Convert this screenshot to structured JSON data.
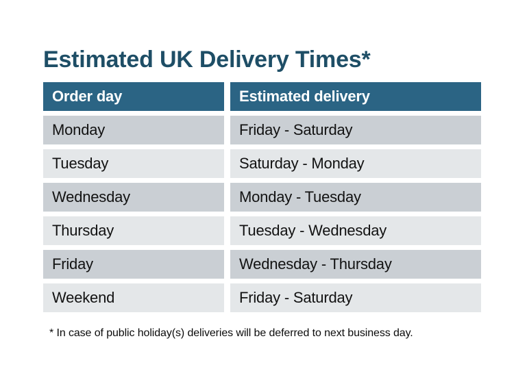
{
  "title": "Estimated UK Delivery Times*",
  "table": {
    "columns": [
      "Order day",
      "Estimated delivery"
    ],
    "rows": [
      {
        "order_day": "Monday",
        "estimated_delivery": "Friday - Saturday"
      },
      {
        "order_day": "Tuesday",
        "estimated_delivery": "Saturday - Monday"
      },
      {
        "order_day": "Wednesday",
        "estimated_delivery": "Monday - Tuesday"
      },
      {
        "order_day": "Thursday",
        "estimated_delivery": "Tuesday - Wednesday"
      },
      {
        "order_day": "Friday",
        "estimated_delivery": "Wednesday - Thursday"
      },
      {
        "order_day": "Weekend",
        "estimated_delivery": "Friday - Saturday"
      }
    ]
  },
  "footnote": "* In case of public holiday(s) deliveries will be deferred to next business day.",
  "colors": {
    "title_text": "#1e4e66",
    "header_bg": "#2b6484",
    "header_text": "#ffffff",
    "row_stripe_dark": "#cacfd4",
    "row_stripe_light": "#e4e7e9",
    "body_text": "#121212",
    "page_bg": "#ffffff"
  }
}
